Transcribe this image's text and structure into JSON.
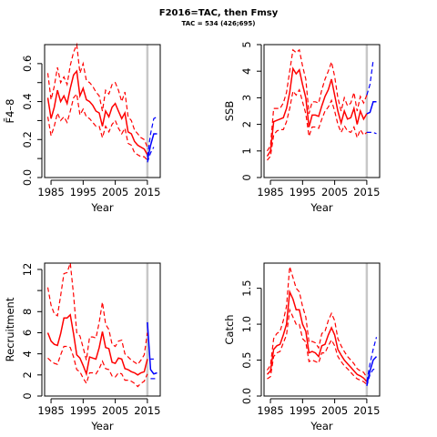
{
  "title": "F2016=TAC, then Fmsy",
  "subtitle": "TAC = 534 (426;695)",
  "colors": {
    "historic": "#ff0000",
    "forecast": "#0000ff",
    "reference_line": "#c8c8c8"
  },
  "chart_data": [
    {
      "type": "line",
      "xlabel": "Year",
      "ylabel": "F̄4–8",
      "xlim": [
        1983,
        2019
      ],
      "ylim": [
        0,
        0.7
      ],
      "xticks": [
        "1985",
        "1995",
        "2005",
        "2015"
      ],
      "xtick_values": [
        1985,
        1995,
        2005,
        2015
      ],
      "yticks": [
        "0.0",
        "0.2",
        "0.4",
        "0.6"
      ],
      "ytick_values": [
        0,
        0.2,
        0.4,
        0.6
      ],
      "minor_yticks": [
        0.1,
        0.3,
        0.5
      ],
      "reference_year": 2015,
      "historic": {
        "years": [
          1984,
          1985,
          1986,
          1987,
          1988,
          1989,
          1990,
          1991,
          1992,
          1993,
          1994,
          1995,
          1996,
          1997,
          1998,
          1999,
          2000,
          2001,
          2002,
          2003,
          2004,
          2005,
          2006,
          2007,
          2008,
          2009,
          2010,
          2011,
          2012,
          2013,
          2014,
          2015
        ],
        "estimate": [
          0.42,
          0.31,
          0.37,
          0.46,
          0.4,
          0.43,
          0.39,
          0.47,
          0.54,
          0.56,
          0.43,
          0.47,
          0.41,
          0.4,
          0.38,
          0.35,
          0.34,
          0.27,
          0.35,
          0.32,
          0.37,
          0.39,
          0.35,
          0.31,
          0.34,
          0.24,
          0.23,
          0.19,
          0.17,
          0.16,
          0.15,
          0.12
        ],
        "lower": [
          0.32,
          0.22,
          0.27,
          0.34,
          0.3,
          0.32,
          0.29,
          0.35,
          0.42,
          0.44,
          0.33,
          0.36,
          0.32,
          0.31,
          0.29,
          0.27,
          0.27,
          0.21,
          0.27,
          0.24,
          0.28,
          0.3,
          0.26,
          0.23,
          0.26,
          0.18,
          0.17,
          0.13,
          0.12,
          0.11,
          0.11,
          0.09
        ],
        "upper": [
          0.55,
          0.41,
          0.48,
          0.58,
          0.5,
          0.53,
          0.49,
          0.59,
          0.66,
          0.7,
          0.55,
          0.6,
          0.51,
          0.5,
          0.48,
          0.45,
          0.43,
          0.35,
          0.46,
          0.44,
          0.49,
          0.5,
          0.46,
          0.4,
          0.45,
          0.32,
          0.3,
          0.25,
          0.23,
          0.21,
          0.2,
          0.16
        ]
      },
      "forecast": {
        "years": [
          2015,
          2016,
          2017,
          2018
        ],
        "estimate": [
          0.09,
          0.17,
          0.23,
          0.23
        ],
        "lower": [
          0.08,
          0.13,
          0.16,
          null
        ],
        "upper": [
          0.11,
          0.23,
          0.31,
          0.32
        ]
      }
    },
    {
      "type": "line",
      "xlabel": "Year",
      "ylabel": "SSB",
      "xlim": [
        1983,
        2019
      ],
      "ylim": [
        0,
        5
      ],
      "xticks": [
        "1985",
        "1995",
        "2005",
        "2015"
      ],
      "xtick_values": [
        1985,
        1995,
        2005,
        2015
      ],
      "yticks": [
        "0",
        "1",
        "2",
        "3",
        "4",
        "5"
      ],
      "ytick_values": [
        0,
        1,
        2,
        3,
        4,
        5
      ],
      "minor_yticks": [],
      "reference_year": 2015,
      "historic": {
        "years": [
          1984,
          1985,
          1986,
          1987,
          1988,
          1989,
          1990,
          1991,
          1992,
          1993,
          1994,
          1995,
          1996,
          1997,
          1998,
          1999,
          2000,
          2001,
          2002,
          2003,
          2004,
          2005,
          2006,
          2007,
          2008,
          2009,
          2010,
          2011,
          2012,
          2013,
          2014,
          2015
        ],
        "estimate": [
          0.8,
          1.0,
          2.1,
          2.15,
          2.2,
          2.25,
          2.6,
          3.2,
          4.1,
          3.9,
          4.05,
          3.5,
          3.0,
          1.9,
          2.35,
          2.35,
          2.3,
          2.7,
          3.05,
          3.3,
          3.7,
          3.1,
          2.5,
          2.05,
          2.5,
          2.2,
          2.25,
          2.6,
          2.0,
          2.5,
          2.2,
          2.4
        ],
        "lower": [
          0.65,
          0.8,
          1.6,
          1.75,
          1.8,
          1.8,
          2.1,
          2.6,
          3.25,
          3.1,
          3.3,
          2.85,
          2.4,
          1.55,
          1.9,
          1.9,
          1.85,
          2.2,
          2.5,
          2.65,
          2.9,
          2.5,
          2.0,
          1.7,
          1.95,
          1.75,
          1.7,
          1.9,
          1.5,
          1.8,
          1.6,
          1.7
        ],
        "upper": [
          1.0,
          1.2,
          2.6,
          2.6,
          2.6,
          2.8,
          3.2,
          4.0,
          4.8,
          4.7,
          4.8,
          4.2,
          3.7,
          2.4,
          2.85,
          2.85,
          2.8,
          3.3,
          3.7,
          4.0,
          4.35,
          3.8,
          3.0,
          2.5,
          3.0,
          2.7,
          2.8,
          3.2,
          2.5,
          3.05,
          2.8,
          3.1
        ]
      },
      "forecast": {
        "years": [
          2015,
          2016,
          2017,
          2018
        ],
        "estimate": [
          2.4,
          2.45,
          2.85,
          2.85
        ],
        "lower": [
          1.7,
          1.7,
          1.7,
          1.65
        ],
        "upper": [
          3.1,
          3.5,
          4.4,
          null
        ]
      }
    },
    {
      "type": "line",
      "xlabel": "Year",
      "ylabel": "Recruitment",
      "xlim": [
        1983,
        2019
      ],
      "ylim": [
        0,
        12.6
      ],
      "xticks": [
        "1985",
        "1995",
        "2005",
        "2015"
      ],
      "xtick_values": [
        1985,
        1995,
        2005,
        2015
      ],
      "yticks": [
        "0",
        "2",
        "4",
        "6",
        "8",
        "12"
      ],
      "ytick_values": [
        0,
        2,
        4,
        6,
        8,
        12
      ],
      "minor_yticks": [
        10
      ],
      "reference_year": 2015,
      "historic": {
        "years": [
          1984,
          1985,
          1986,
          1987,
          1988,
          1989,
          1990,
          1991,
          1992,
          1993,
          1994,
          1995,
          1996,
          1997,
          1998,
          1999,
          2000,
          2001,
          2002,
          2003,
          2004,
          2005,
          2006,
          2007,
          2008,
          2009,
          2010,
          2011,
          2012,
          2013,
          2014,
          2015
        ],
        "estimate": [
          6.0,
          5.2,
          4.9,
          4.8,
          5.9,
          7.4,
          7.4,
          7.7,
          5.9,
          3.9,
          3.6,
          2.9,
          2.1,
          3.7,
          3.6,
          3.5,
          4.6,
          6.1,
          4.6,
          4.5,
          3.2,
          3.1,
          3.6,
          3.5,
          2.6,
          2.5,
          2.3,
          2.2,
          2.0,
          2.2,
          2.3,
          3.5
        ],
        "lower": [
          3.6,
          3.3,
          3.1,
          3.0,
          3.9,
          4.7,
          4.7,
          4.6,
          3.7,
          2.5,
          2.3,
          1.7,
          1.2,
          2.2,
          2.2,
          2.1,
          2.6,
          3.3,
          2.6,
          2.5,
          1.9,
          1.8,
          2.2,
          2.1,
          1.5,
          1.5,
          1.4,
          1.2,
          0.9,
          1.2,
          1.4,
          2.1
        ],
        "upper": [
          10.3,
          8.6,
          7.8,
          7.6,
          9.5,
          11.6,
          11.7,
          12.6,
          9.6,
          6.0,
          5.7,
          4.6,
          3.4,
          5.6,
          5.6,
          5.5,
          7.0,
          8.9,
          6.8,
          6.3,
          4.9,
          4.7,
          5.2,
          5.3,
          4.0,
          3.7,
          3.4,
          3.2,
          3.0,
          3.4,
          3.9,
          6.0
        ]
      },
      "forecast": {
        "years": [
          2015,
          2016,
          2017,
          2018
        ],
        "estimate": [
          7.0,
          2.5,
          2.1,
          2.2
        ],
        "lower": [
          null,
          1.65,
          1.65,
          1.65
        ],
        "upper": [
          null,
          3.5,
          3.5,
          null
        ]
      }
    },
    {
      "type": "line",
      "xlabel": "Year",
      "ylabel": "Catch",
      "xlim": [
        1983,
        2019
      ],
      "ylim": [
        0,
        1.85
      ],
      "xticks": [
        "1985",
        "1995",
        "2005",
        "2015"
      ],
      "xtick_values": [
        1985,
        1995,
        2005,
        2015
      ],
      "yticks": [
        "0.0",
        "0.5",
        "1.0",
        "1.5"
      ],
      "ytick_values": [
        0,
        0.5,
        1.0,
        1.5
      ],
      "minor_yticks": [],
      "reference_year": 2015,
      "historic": {
        "years": [
          1984,
          1985,
          1986,
          1987,
          1988,
          1989,
          1990,
          1991,
          1992,
          1993,
          1994,
          1995,
          1996,
          1997,
          1998,
          1999,
          2000,
          2001,
          2002,
          2003,
          2004,
          2005,
          2006,
          2007,
          2008,
          2009,
          2010,
          2011,
          2012,
          2013,
          2014,
          2015
        ],
        "estimate": [
          0.3,
          0.35,
          0.65,
          0.7,
          0.72,
          0.85,
          1.0,
          1.45,
          1.35,
          1.2,
          1.2,
          1.0,
          0.9,
          0.6,
          0.62,
          0.6,
          0.55,
          0.7,
          0.72,
          0.85,
          0.95,
          0.85,
          0.65,
          0.57,
          0.5,
          0.45,
          0.4,
          0.35,
          0.3,
          0.28,
          0.25,
          0.2
        ],
        "lower": [
          0.24,
          0.27,
          0.55,
          0.6,
          0.62,
          0.74,
          0.85,
          1.2,
          1.1,
          1.0,
          1.0,
          0.8,
          0.75,
          0.48,
          0.5,
          0.48,
          0.46,
          0.6,
          0.6,
          0.7,
          0.78,
          0.7,
          0.55,
          0.48,
          0.42,
          0.38,
          0.33,
          0.28,
          0.24,
          0.22,
          0.2,
          0.16
        ],
        "upper": [
          0.36,
          0.43,
          0.8,
          0.87,
          0.9,
          1.05,
          1.25,
          1.8,
          1.65,
          1.5,
          1.45,
          1.25,
          1.1,
          0.75,
          0.76,
          0.74,
          0.67,
          0.87,
          0.9,
          1.05,
          1.15,
          1.05,
          0.8,
          0.7,
          0.62,
          0.55,
          0.5,
          0.45,
          0.38,
          0.35,
          0.33,
          0.26
        ]
      },
      "forecast": {
        "years": [
          2015,
          2016,
          2017,
          2018
        ],
        "estimate": [
          0.16,
          0.35,
          0.5,
          0.55
        ],
        "lower": [
          0.14,
          0.3,
          0.37,
          0.38
        ],
        "upper": [
          0.2,
          0.45,
          0.65,
          0.82
        ]
      }
    }
  ]
}
